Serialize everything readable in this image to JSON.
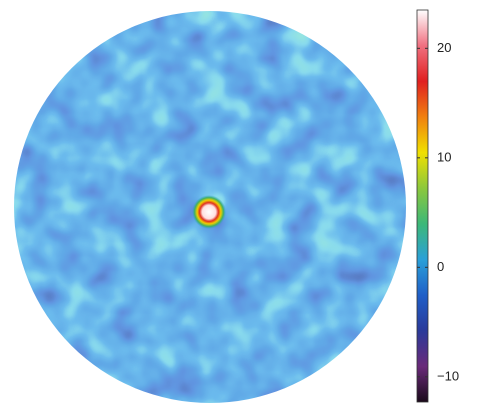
{
  "chart_data": {
    "type": "image",
    "colorbar": {
      "clim": [
        -12.3,
        23.5
      ],
      "ticks": [
        20,
        10,
        0,
        {
          "value": -10,
          "label": "−10"
        }
      ],
      "colors": [
        "#1a0a1a",
        "#6a2a7a",
        "#2a3a9a",
        "#1f5fc8",
        "#2aa0d8",
        "#3cb878",
        "#8cc83c",
        "#f0e000",
        "#f08010",
        "#e02020",
        "#f07080",
        "#ffffff"
      ]
    }
  }
}
